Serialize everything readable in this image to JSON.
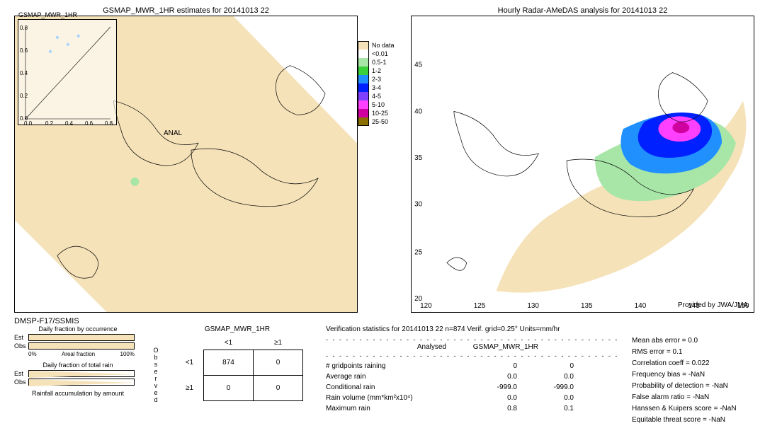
{
  "left_map": {
    "title": "GSMAP_MWR_1HR estimates for 20141013 22",
    "inset_title": "GSMAP_MWR_1HR",
    "inset_ticks_y": [
      "0.8",
      "0.6",
      "0.4",
      "0.2",
      "0.0"
    ],
    "inset_ticks_x": [
      "0.0",
      "0.2",
      "0.4",
      "0.6",
      "0.8"
    ],
    "anal_label": "ANAL",
    "sensor": "DMSP-F17/SSMIS",
    "background_color": "#ffffff",
    "nodata_color": "#f5e2b8",
    "coast_color": "#000000"
  },
  "right_map": {
    "title": "Hourly Radar-AMeDAS analysis for 20141013 22",
    "provided": "Provided by JWA/JMA",
    "lon_ticks": [
      "120",
      "125",
      "130",
      "135",
      "140",
      "145",
      "150"
    ],
    "lat_ticks": [
      "20",
      "25",
      "30",
      "35",
      "40",
      "45"
    ],
    "background_color": "#ffffff",
    "coast_color": "#000000"
  },
  "legend": {
    "items": [
      {
        "label": "No data",
        "color": "#f5e2b8"
      },
      {
        "label": "<0.01",
        "color": "#ffffff"
      },
      {
        "label": "0.5-1",
        "color": "#a8e6a8"
      },
      {
        "label": "1-2",
        "color": "#3bd13b"
      },
      {
        "label": "2-3",
        "color": "#2090ff"
      },
      {
        "label": "3-4",
        "color": "#0020ff"
      },
      {
        "label": "4-5",
        "color": "#8040ff"
      },
      {
        "label": "5-10",
        "color": "#ff40ff"
      },
      {
        "label": "10-25",
        "color": "#d000a0"
      },
      {
        "label": "25-50",
        "color": "#8b6f00"
      }
    ]
  },
  "fractions": {
    "occurrence_title": "Daily fraction by occurrence",
    "total_rain_title": "Daily fraction of total rain",
    "accum_title": "Rainfall accumulation by amount",
    "est_label": "Est",
    "obs_label": "Obs",
    "axis_0": "0%",
    "axis_100": "100%",
    "areal_frac_label": "Areal fraction",
    "occurrence_est_fill": 100,
    "occurrence_obs_fill": 100,
    "total_est_shape": "triangle",
    "total_obs_shape": "triangle",
    "bar_color": "#f5e2b8"
  },
  "contingency": {
    "title": "GSMAP_MWR_1HR",
    "observed_label": "Observed",
    "col_headers": [
      "<1",
      "≥1"
    ],
    "row_headers": [
      "<1",
      "≥1"
    ],
    "cells": [
      [
        "874",
        "0"
      ],
      [
        "0",
        "0"
      ]
    ]
  },
  "stats": {
    "title": "Verification statistics for 20141013 22  n=874  Verif. grid=0.25°  Units=mm/hr",
    "col_analysed": "Analysed",
    "col_est": "GSMAP_MWR_1HR",
    "rows": [
      {
        "label": "# gridpoints raining",
        "v1": "0",
        "v2": "0"
      },
      {
        "label": "Average rain",
        "v1": "0.0",
        "v2": "0.0"
      },
      {
        "label": "Conditional rain",
        "v1": "-999.0",
        "v2": "-999.0"
      },
      {
        "label": "Rain volume (mm*km²x10⁴)",
        "v1": "0.0",
        "v2": "0.0"
      },
      {
        "label": "Maximum rain",
        "v1": "0.8",
        "v2": "0.1"
      }
    ]
  },
  "scores": [
    {
      "label": "Mean abs error",
      "value": "0.0"
    },
    {
      "label": "RMS error",
      "value": "0.1"
    },
    {
      "label": "Correlation coeff",
      "value": "0.022"
    },
    {
      "label": "Frequency bias",
      "value": "-NaN"
    },
    {
      "label": "Probability of detection",
      "value": "-NaN"
    },
    {
      "label": "False alarm ratio",
      "value": "-NaN"
    },
    {
      "label": "Hanssen & Kuipers score",
      "value": "-NaN"
    },
    {
      "label": "Equitable threat score",
      "value": "-NaN"
    }
  ]
}
